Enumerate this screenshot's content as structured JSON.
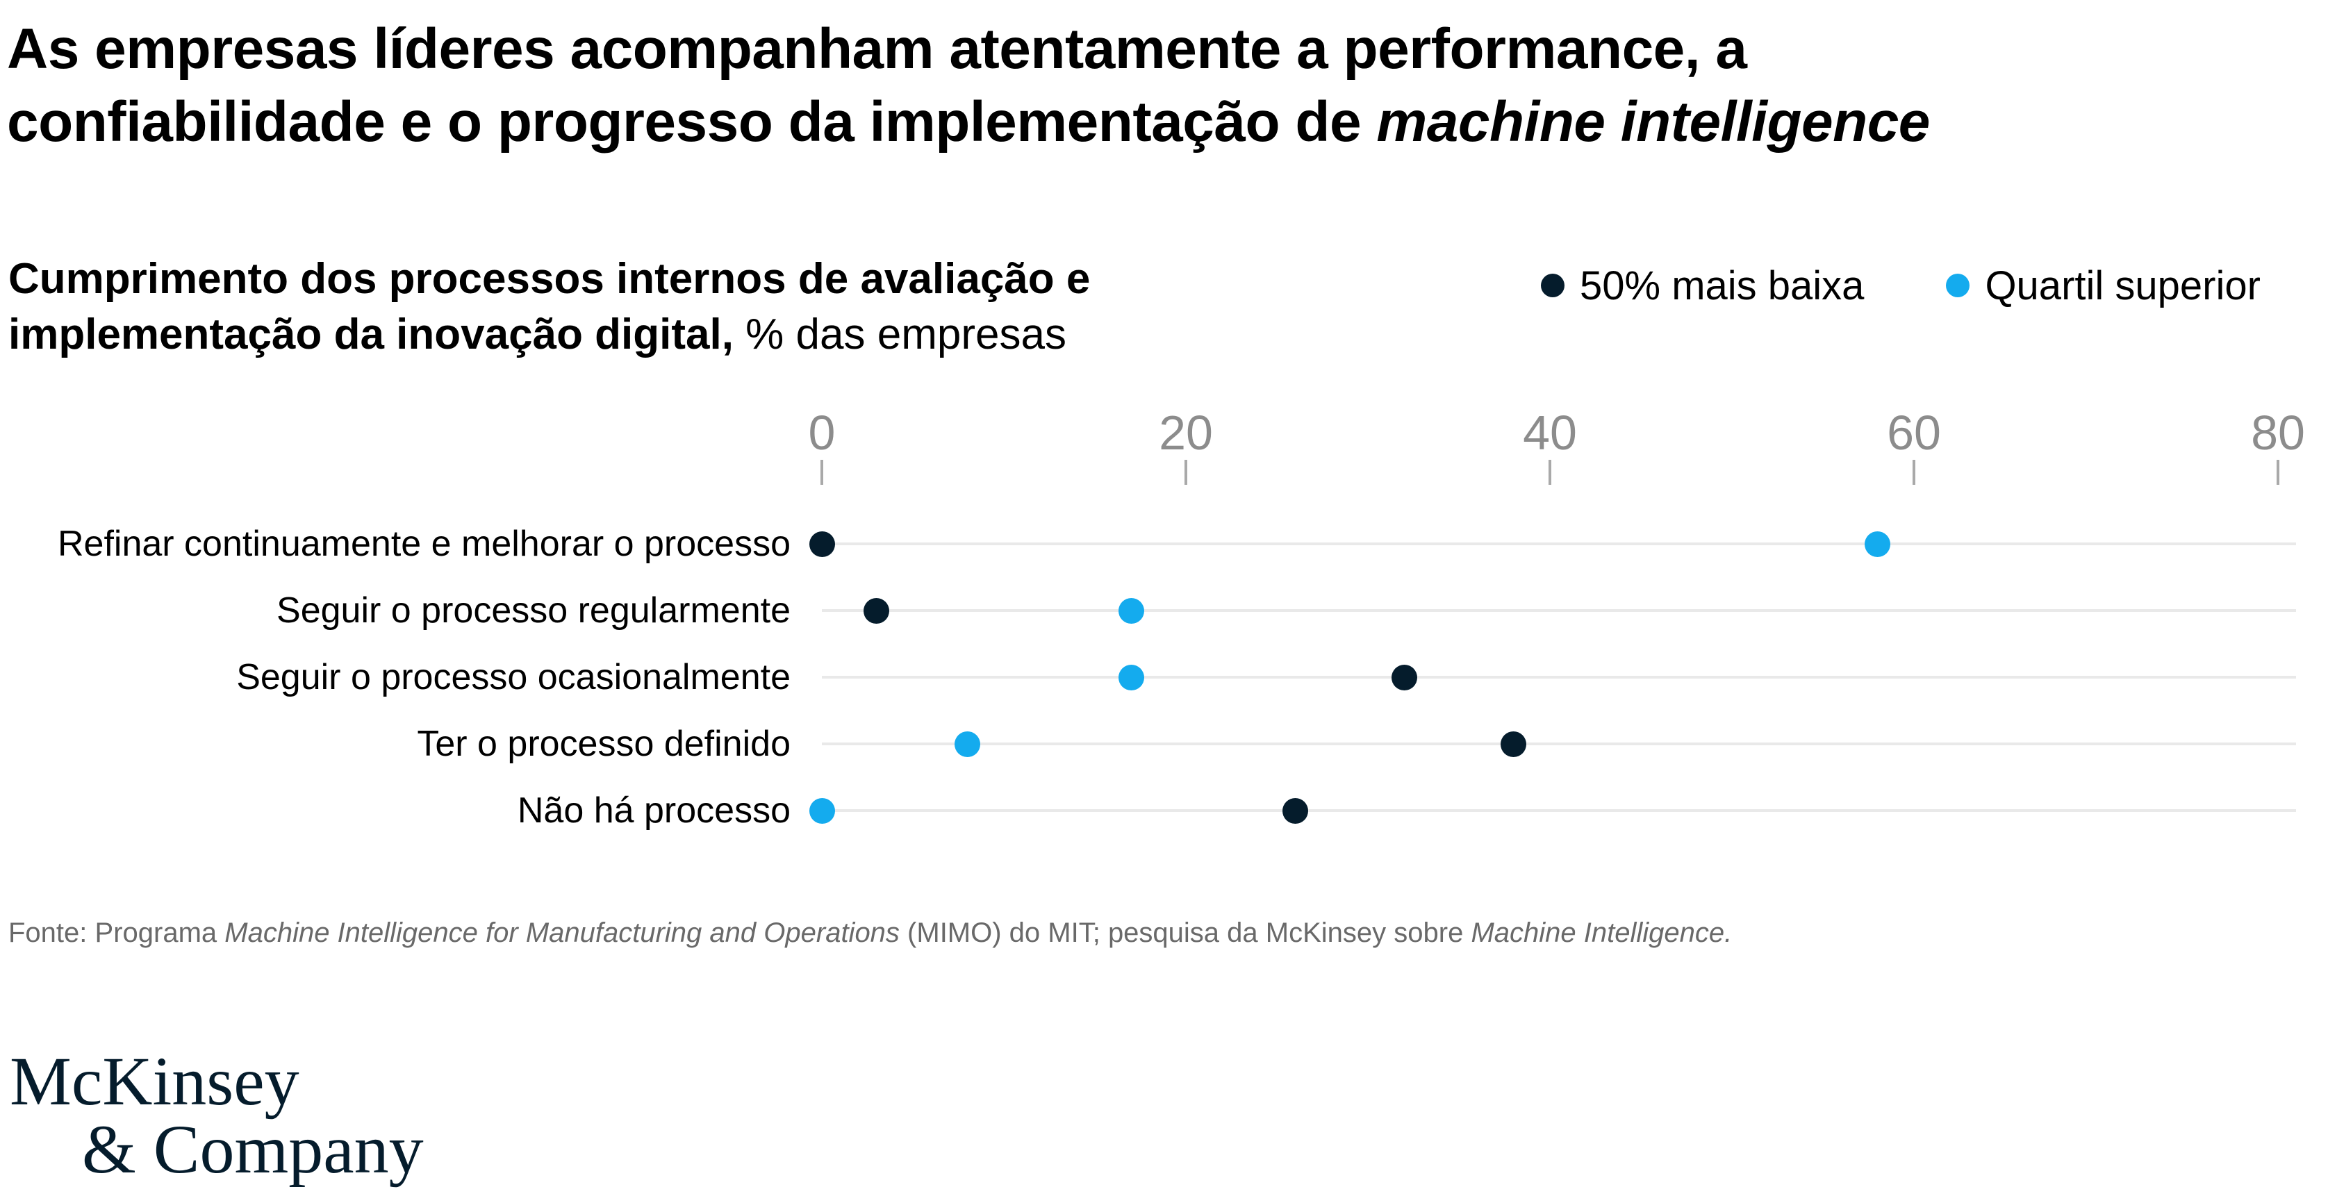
{
  "title": {
    "line1": "As empresas líderes acompanham atentamente a performance, a",
    "line2": "confiabilidade e o progresso da implementação de ",
    "line2_italic": "machine intelligence"
  },
  "subtitle": {
    "line1_bold": "Cumprimento dos processos internos de avaliação e",
    "line2_bold": "implementação da inovação digital,",
    "line2_regular": " % das empresas"
  },
  "legend": {
    "items": [
      {
        "label": "50% mais baixa",
        "color": "#051C2C"
      },
      {
        "label": "Quartil superior",
        "color": "#14ABEE"
      }
    ]
  },
  "chart_data": {
    "type": "scatter",
    "subtype": "horizontal_dot_plot",
    "title": "Cumprimento dos processos internos de avaliação e implementação da inovação digital, % das empresas",
    "categories": [
      "Refinar continuamente e melhorar o processo",
      "Seguir o processo regularmente",
      "Seguir o processo ocasionalmente",
      "Ter o processo definido",
      "Não há processo"
    ],
    "series": [
      {
        "name": "50% mais baixa",
        "color": "#051C2C",
        "values": [
          0,
          3,
          32,
          38,
          26
        ]
      },
      {
        "name": "Quartil superior",
        "color": "#14ABEE",
        "values": [
          58,
          17,
          17,
          8,
          0
        ]
      }
    ],
    "xticks": [
      0,
      20,
      40,
      60,
      80
    ],
    "xlim": [
      0,
      80
    ],
    "xlabel": "% das empresas",
    "grid": "light horizontal line per category",
    "legend_position": "top-right"
  },
  "footer": {
    "parts": [
      {
        "text": "Fonte: Programa ",
        "italic": false
      },
      {
        "text": "Machine Intelligence for Manufacturing and Operations",
        "italic": true
      },
      {
        "text": " (MIMO) do MIT; pesquisa da McKinsey sobre ",
        "italic": false
      },
      {
        "text": "Machine Intelligence.",
        "italic": true
      }
    ]
  },
  "logo": {
    "line1": "McKinsey",
    "line2": "& Company"
  },
  "colors": {
    "dark_series": "#051C2C",
    "light_series": "#14ABEE",
    "row_line": "#E9E9E9",
    "tick": "#A9A9A9",
    "axis_label": "#8C8C8C",
    "footer_text": "#696969",
    "logo": "#051C2C"
  }
}
